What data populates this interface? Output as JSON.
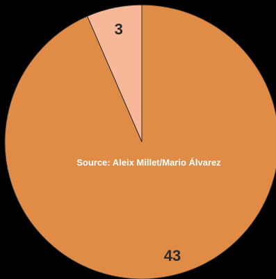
{
  "chart_data": {
    "type": "pie",
    "slices": [
      {
        "label": "3",
        "value": 3,
        "color": "#f7b89a"
      },
      {
        "label": "43",
        "value": 43,
        "color": "#e08c46"
      }
    ],
    "annotation": "Source: Aleix Millet/Mario Álvarez",
    "background": "#000000",
    "slice_edge_color": "#2a2a2a"
  }
}
